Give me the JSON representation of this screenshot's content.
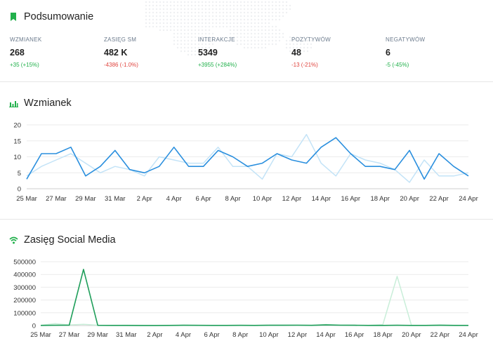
{
  "summary": {
    "title": "Podsumowanie",
    "kpis": [
      {
        "label": "WZMIANEK",
        "value": "268",
        "delta": "+35",
        "pct": "(+15%)",
        "trend": "pos"
      },
      {
        "label": "ZASIĘG SM",
        "value": "482 K",
        "delta": "-4386",
        "pct": "(-1.0%)",
        "trend": "neg"
      },
      {
        "label": "INTERAKCJE",
        "value": "5349",
        "delta": "+3955",
        "pct": "(+284%)",
        "trend": "pos"
      },
      {
        "label": "POZYTYWÓW",
        "value": "48",
        "delta": "-13",
        "pct": "(-21%)",
        "trend": "neg"
      },
      {
        "label": "NEGATYWÓW",
        "value": "6",
        "delta": "-5",
        "pct": "(-45%)",
        "trend": "pos"
      }
    ]
  },
  "mentions": {
    "title": "Wzmianek"
  },
  "reach": {
    "title": "Zasięg Social Media"
  },
  "colors": {
    "positive": "#21b04b",
    "negative": "#e0443e",
    "blue": "#2a8fde",
    "blue_light": "#c3e3f7",
    "green": "#1f9e5a",
    "green_light": "#c9eed9"
  },
  "chart_data": [
    {
      "type": "line",
      "x": [
        "25 Mar",
        "26 Mar",
        "27 Mar",
        "28 Mar",
        "29 Mar",
        "30 Mar",
        "31 Mar",
        "1 Apr",
        "2 Apr",
        "3 Apr",
        "4 Apr",
        "5 Apr",
        "6 Apr",
        "7 Apr",
        "8 Apr",
        "9 Apr",
        "10 Apr",
        "11 Apr",
        "12 Apr",
        "13 Apr",
        "14 Apr",
        "15 Apr",
        "16 Apr",
        "17 Apr",
        "18 Apr",
        "19 Apr",
        "20 Apr",
        "21 Apr",
        "22 Apr",
        "23 Apr",
        "24 Apr"
      ],
      "xticks": [
        "25 Mar",
        "27 Mar",
        "29 Mar",
        "31 Mar",
        "2 Apr",
        "4 Apr",
        "6 Apr",
        "8 Apr",
        "10 Apr",
        "12 Apr",
        "14 Apr",
        "16 Apr",
        "18 Apr",
        "20 Apr",
        "22 Apr",
        "24 Apr"
      ],
      "yticks": [
        "0",
        "5",
        "10",
        "15",
        "20"
      ],
      "ylim": [
        0,
        20
      ],
      "grid": true,
      "series": [
        {
          "values": [
            3,
            11,
            11,
            13,
            4,
            7,
            12,
            6,
            5,
            7,
            13,
            7,
            7,
            12,
            10,
            7,
            8,
            11,
            9,
            8,
            13,
            16,
            11,
            7,
            7,
            6,
            12,
            3,
            11,
            7,
            4
          ]
        },
        {
          "values": [
            4,
            7,
            9,
            11,
            8,
            5,
            7,
            6,
            4,
            10,
            9,
            8,
            8,
            13,
            7,
            7,
            3,
            11,
            10,
            17,
            8,
            4,
            11,
            9,
            8,
            6,
            2,
            9,
            4,
            4,
            5
          ]
        }
      ]
    },
    {
      "type": "line",
      "x": [
        "25 Mar",
        "26 Mar",
        "27 Mar",
        "28 Mar",
        "29 Mar",
        "30 Mar",
        "31 Mar",
        "1 Apr",
        "2 Apr",
        "3 Apr",
        "4 Apr",
        "5 Apr",
        "6 Apr",
        "7 Apr",
        "8 Apr",
        "9 Apr",
        "10 Apr",
        "11 Apr",
        "12 Apr",
        "13 Apr",
        "14 Apr",
        "15 Apr",
        "16 Apr",
        "17 Apr",
        "18 Apr",
        "19 Apr",
        "20 Apr",
        "21 Apr",
        "22 Apr",
        "23 Apr",
        "24 Apr"
      ],
      "xticks": [
        "25 Mar",
        "27 Mar",
        "29 Mar",
        "31 Mar",
        "2 Apr",
        "4 Apr",
        "6 Apr",
        "8 Apr",
        "10 Apr",
        "12 Apr",
        "14 Apr",
        "16 Apr",
        "18 Apr",
        "20 Apr",
        "22 Apr",
        "24 Apr"
      ],
      "yticks": [
        "0",
        "100000",
        "200000",
        "300000",
        "400000",
        "500000"
      ],
      "ylim": [
        0,
        500000
      ],
      "grid": true,
      "series": [
        {
          "values": [
            1000,
            2000,
            3000,
            440000,
            1500,
            1000,
            1000,
            800,
            500,
            1000,
            2000,
            1500,
            1000,
            1000,
            1500,
            1000,
            2000,
            2000,
            3000,
            1500,
            5000,
            3000,
            2000,
            1000,
            1000,
            2000,
            1000,
            1000,
            2000,
            1000,
            1000
          ]
        },
        {
          "values": [
            2000,
            15000,
            5000,
            10000,
            3000,
            2000,
            3000,
            2000,
            1000,
            2000,
            3000,
            2000,
            2000,
            2000,
            3000,
            2000,
            3000,
            3000,
            4000,
            2000,
            8000,
            4000,
            3000,
            2000,
            8000,
            385000,
            3000,
            2000,
            5000,
            3000,
            2000
          ]
        }
      ]
    }
  ]
}
